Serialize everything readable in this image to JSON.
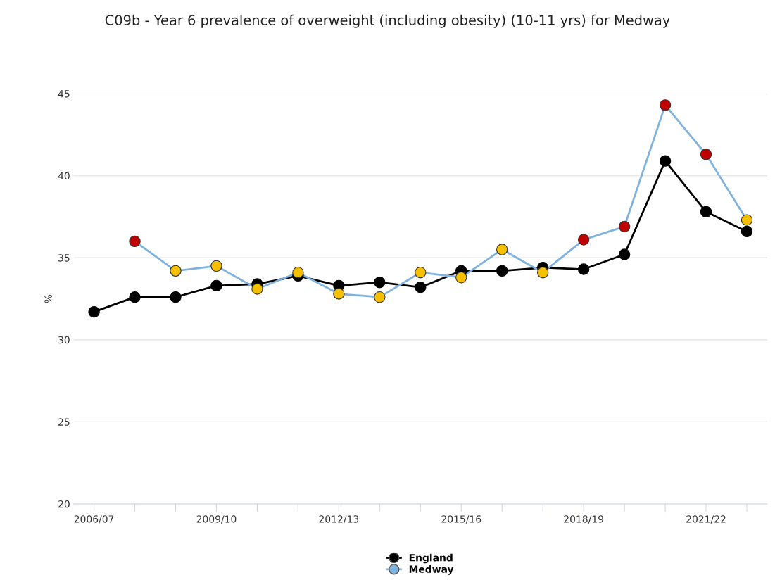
{
  "chart_data": {
    "type": "line",
    "title": "C09b - Year 6 prevalence of overweight (including obesity) (10-11 yrs) for Medway",
    "ylabel": "%",
    "categories": [
      "2006/07",
      null,
      null,
      "2009/10",
      null,
      null,
      "2012/13",
      null,
      null,
      "2015/16",
      null,
      null,
      "2018/19",
      null,
      null,
      "2021/22",
      null
    ],
    "series": [
      {
        "name": "England",
        "color": "#000000",
        "values": [
          31.7,
          32.6,
          32.6,
          33.3,
          33.4,
          33.9,
          33.3,
          33.5,
          33.2,
          34.2,
          34.2,
          34.4,
          34.3,
          35.2,
          40.9,
          37.8,
          36.6
        ]
      },
      {
        "name": "Medway",
        "color": "#7fb2dc",
        "values": [
          null,
          36.0,
          34.2,
          34.5,
          33.1,
          34.1,
          32.8,
          32.6,
          34.1,
          33.8,
          35.5,
          34.1,
          36.1,
          36.9,
          44.3,
          41.3,
          37.3
        ],
        "colors": [
          null,
          "#c00000",
          "#f5c000",
          "#f5c000",
          "#f5c000",
          "#f5c000",
          "#f5c000",
          "#f5c000",
          "#f5c000",
          "#f5c000",
          "#f5c000",
          "#f5c000",
          "#c00000",
          "#c00000",
          "#c00000",
          "#c00000",
          "#f5c000"
        ]
      }
    ],
    "ylim": [
      20,
      45
    ],
    "yticks": [
      20,
      25,
      30,
      35,
      40,
      45
    ],
    "grid": "y",
    "legend": "bottom",
    "marker": "circle",
    "line_style": "solid"
  }
}
